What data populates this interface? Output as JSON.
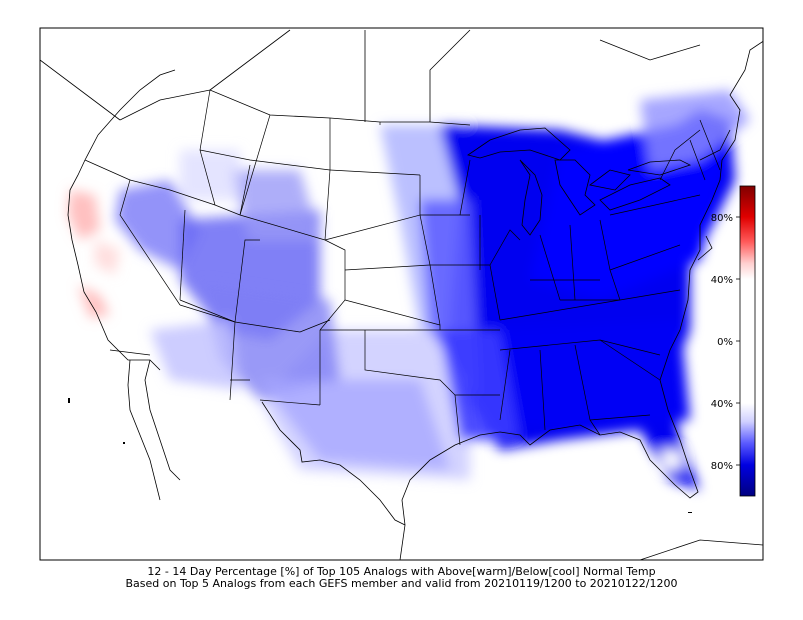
{
  "caption": {
    "line1": "12 - 14 Day Percentage [%] of Top 105 Analogs with Above[warm]/Below[cool] Normal Temp",
    "line2": "Based on Top 5 Analogs from each GEFS member and valid from 20210119/1200 to 20210122/1200"
  },
  "colorbar": {
    "labels": [
      "80%",
      "40%",
      "0%",
      "40%",
      "80%"
    ],
    "top_color": "#800000",
    "mid_color": "#ffffff",
    "bottom_color": "#000080",
    "warm_color": "#ff0000",
    "cool_color": "#0000ff"
  },
  "map": {
    "region": "CONUS",
    "colors": {
      "strong_cool": "#0000f0",
      "mid_cool": "#5a5aff",
      "light_cool": "#b4b4ff",
      "faint_cool": "#e6e6ff",
      "light_warm": "#ffc8c8",
      "boundary": "#000000"
    }
  }
}
